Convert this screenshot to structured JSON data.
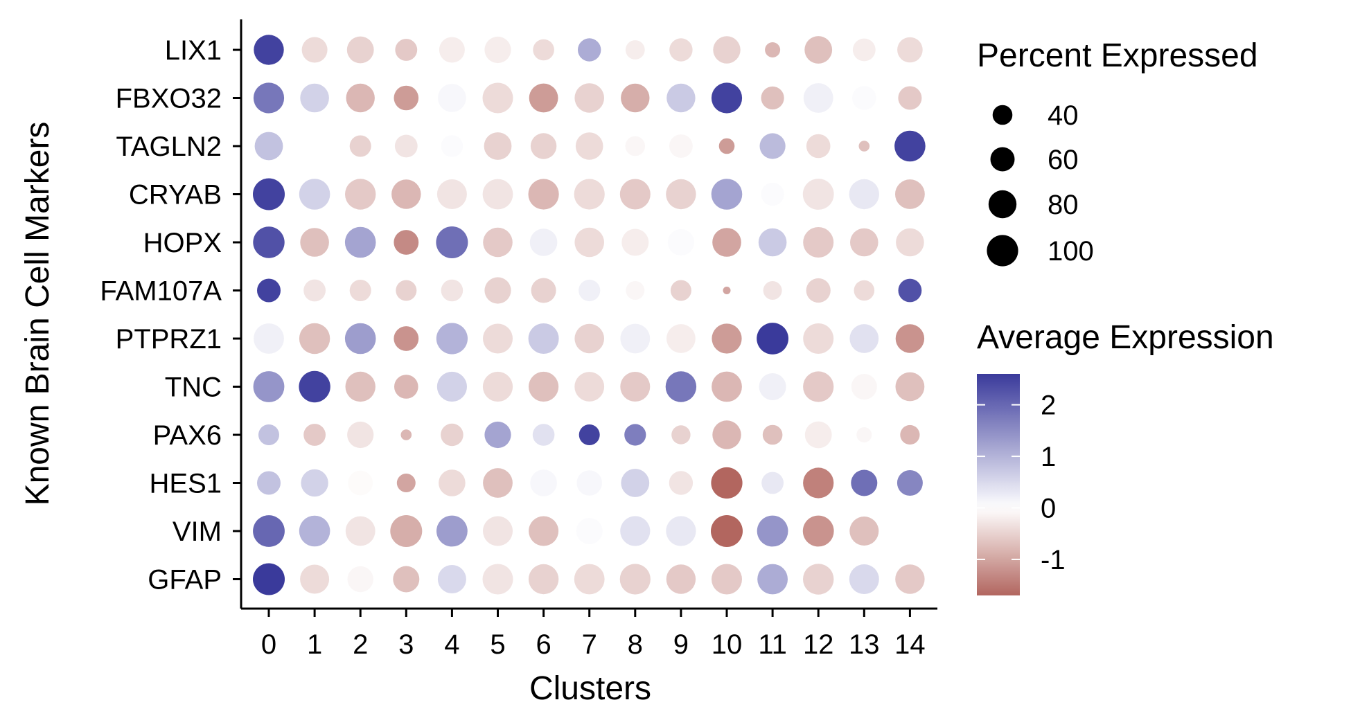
{
  "chart_data": {
    "type": "dotplot",
    "xlabel": "Clusters",
    "ylabel": "Known Brain Cell Markers",
    "clusters": [
      "0",
      "1",
      "2",
      "3",
      "4",
      "5",
      "6",
      "7",
      "8",
      "9",
      "10",
      "11",
      "12",
      "13",
      "14"
    ],
    "genes": [
      "LIX1",
      "FBXO32",
      "TAGLN2",
      "CRYAB",
      "HOPX",
      "FAM107A",
      "PTPRZ1",
      "TNC",
      "PAX6",
      "HES1",
      "VIM",
      "GFAP"
    ],
    "pct_expressed": [
      [
        93,
        67,
        74,
        50,
        67,
        72,
        46,
        55,
        38,
        55,
        76,
        24,
        78,
        53,
        66
      ],
      [
        96,
        85,
        84,
        62,
        82,
        95,
        86,
        89,
        84,
        84,
        96,
        54,
        90,
        59,
        57
      ],
      [
        82,
        28,
        47,
        53,
        49,
        78,
        69,
        77,
        40,
        56,
        25,
        68,
        59,
        12,
        98
      ],
      [
        104,
        98,
        97,
        88,
        91,
        94,
        96,
        96,
        95,
        93,
        98,
        54,
        99,
        93,
        90
      ],
      [
        101,
        85,
        98,
        63,
        104,
        89,
        77,
        89,
        75,
        72,
        85,
        81,
        95,
        81,
        81
      ],
      [
        57,
        50,
        47,
        44,
        49,
        72,
        64,
        48,
        36,
        44,
        6,
        36,
        61,
        43,
        56
      ],
      [
        94,
        97,
        98,
        63,
        100,
        91,
        95,
        89,
        90,
        86,
        92,
        103,
        95,
        86,
        84
      ],
      [
        99,
        101,
        93,
        59,
        92,
        92,
        92,
        90,
        91,
        97,
        94,
        75,
        96,
        67,
        86
      ],
      [
        44,
        50,
        72,
        12,
        52,
        72,
        49,
        44,
        48,
        37,
        84,
        40,
        74,
        24,
        39
      ],
      [
        57,
        76,
        63,
        36,
        73,
        90,
        73,
        66,
        82,
        58,
        100,
        50,
        96,
        71,
        67
      ],
      [
        103,
        98,
        90,
        104,
        99,
        91,
        91,
        71,
        92,
        92,
        104,
        99,
        99,
        87,
        0
      ],
      [
        104,
        87,
        69,
        71,
        83,
        95,
        93,
        94,
        96,
        88,
        95,
        94,
        97,
        91,
        88
      ]
    ],
    "avg_expression": [
      [
        2.5,
        -0.4,
        -0.5,
        -0.6,
        -0.2,
        -0.2,
        -0.4,
        1.1,
        -0.2,
        -0.4,
        -0.5,
        -0.8,
        -0.7,
        -0.2,
        -0.4
      ],
      [
        1.8,
        0.6,
        -0.8,
        -1.1,
        0.1,
        -0.4,
        -1.1,
        -0.5,
        -0.9,
        0.7,
        2.5,
        -0.7,
        0.2,
        0.05,
        -0.6
      ],
      [
        0.8,
        0.0,
        -0.5,
        -0.3,
        0.05,
        -0.5,
        -0.5,
        -0.4,
        -0.1,
        -0.1,
        -1.1,
        0.9,
        -0.4,
        -0.7,
        2.5
      ],
      [
        2.5,
        0.6,
        -0.6,
        -0.8,
        -0.3,
        -0.3,
        -0.8,
        -0.4,
        -0.6,
        -0.5,
        1.2,
        0.05,
        -0.3,
        0.3,
        -0.7
      ],
      [
        2.3,
        -0.7,
        1.2,
        -1.3,
        1.9,
        -0.6,
        0.2,
        -0.4,
        -0.2,
        0.05,
        -1.0,
        0.7,
        -0.6,
        -0.6,
        -0.4
      ],
      [
        2.5,
        -0.3,
        -0.4,
        -0.5,
        -0.3,
        -0.5,
        -0.5,
        0.2,
        -0.1,
        -0.5,
        -1.0,
        -0.3,
        -0.5,
        -0.4,
        2.3
      ],
      [
        0.2,
        -0.7,
        1.3,
        -1.2,
        1.0,
        -0.4,
        0.7,
        -0.5,
        0.2,
        -0.2,
        -1.1,
        2.6,
        -0.4,
        0.4,
        -1.2
      ],
      [
        1.4,
        2.5,
        -0.7,
        -0.8,
        0.6,
        -0.4,
        -0.7,
        -0.4,
        -0.6,
        1.8,
        -0.8,
        0.2,
        -0.6,
        -0.1,
        -0.7
      ],
      [
        0.8,
        -0.6,
        -0.3,
        -0.8,
        -0.5,
        1.2,
        0.4,
        2.5,
        1.7,
        -0.5,
        -0.8,
        -0.7,
        -0.2,
        -0.1,
        -0.8
      ],
      [
        0.8,
        0.6,
        -0.05,
        -1.0,
        -0.4,
        -0.7,
        0.1,
        0.1,
        0.6,
        -0.3,
        -1.8,
        0.3,
        -1.4,
        1.9,
        1.6
      ],
      [
        2.0,
        1.0,
        -0.3,
        -0.9,
        1.3,
        -0.3,
        -0.7,
        0.05,
        0.4,
        0.3,
        -1.8,
        1.4,
        -1.2,
        -0.7,
        null
      ],
      [
        2.6,
        -0.4,
        -0.1,
        -0.7,
        0.5,
        -0.3,
        -0.5,
        -0.4,
        -0.5,
        -0.6,
        -0.6,
        1.1,
        -0.5,
        0.5,
        -0.6
      ]
    ],
    "size_legend": {
      "title": "Percent Expressed",
      "values": [
        40,
        60,
        80,
        100
      ],
      "labels": [
        "40",
        "60",
        "80",
        "100"
      ]
    },
    "color_legend": {
      "title": "Average Expression",
      "ticks": [
        2,
        1,
        0,
        -1
      ],
      "tick_labels": [
        "2",
        "1",
        "0",
        "-1"
      ],
      "range": [
        -1.7,
        2.6
      ],
      "colors": {
        "high": "#3a3a9b",
        "mid": "#ffffff",
        "low": "#b2665f"
      }
    },
    "legend_position": "right",
    "grid": false
  }
}
